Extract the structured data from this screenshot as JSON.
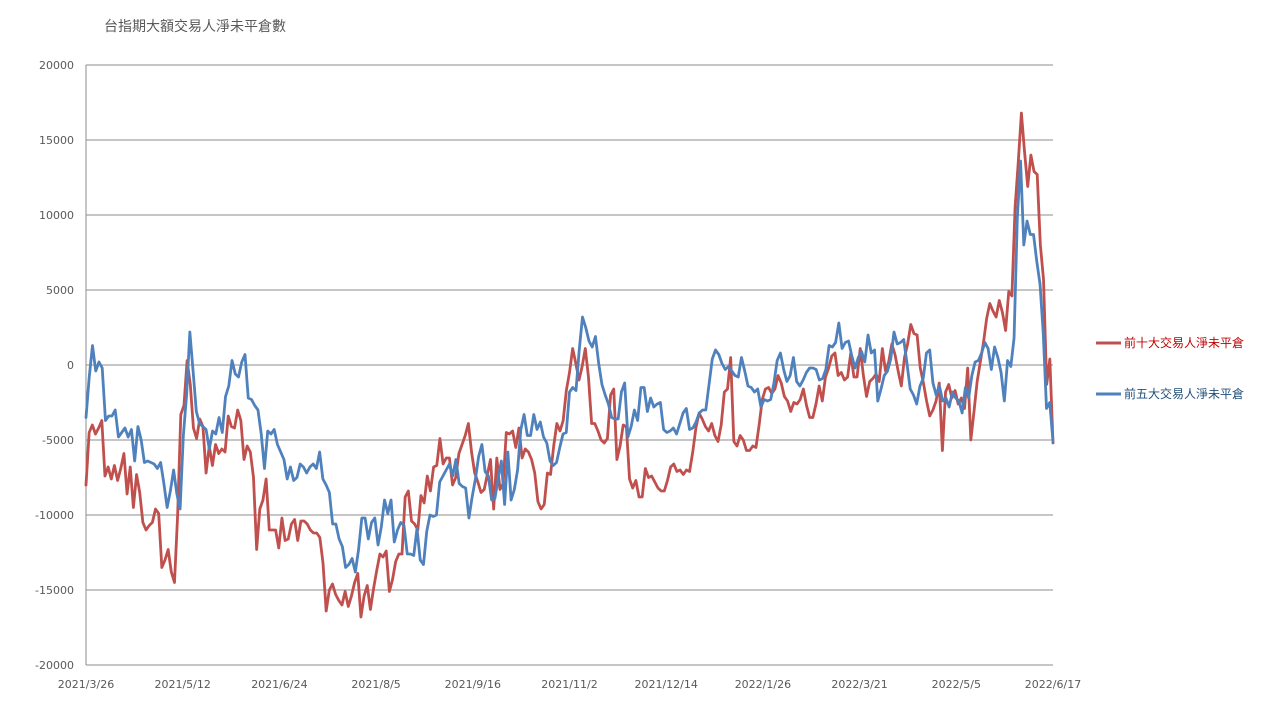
{
  "chart_data": {
    "type": "line",
    "title": "台指期大額交易人淨未平倉數",
    "xlabel": "",
    "ylabel": "",
    "ylim": [
      -20000,
      20000
    ],
    "yticks": [
      20000,
      15000,
      10000,
      5000,
      0,
      -5000,
      -10000,
      -15000,
      -20000
    ],
    "xticks": [
      "2021/3/26",
      "2021/5/12",
      "2021/6/24",
      "2021/8/5",
      "2021/9/16",
      "2021/11/2",
      "2021/12/14",
      "2022/1/26",
      "2022/3/21",
      "2022/5/5",
      "2022/6/17"
    ],
    "grid": true,
    "legend_position": "right",
    "series": [
      {
        "name": "前十大交易人淨未平倉",
        "color": "#C0504D",
        "values": [
          -8000,
          -4500,
          -4000,
          -4600,
          -4200,
          -3700,
          -7400,
          -6800,
          -7600,
          -6700,
          -7700,
          -6900,
          -5900,
          -8600,
          -6800,
          -9500,
          -7300,
          -8500,
          -10500,
          -11000,
          -10700,
          -10500,
          -9600,
          -9900,
          -13500,
          -13000,
          -12300,
          -13800,
          -14500,
          -10000,
          -3300,
          -2700,
          300,
          -1300,
          -4200,
          -4900,
          -3600,
          -4100,
          -7200,
          -5400,
          -6700,
          -5300,
          -5900,
          -5600,
          -5800,
          -3400,
          -4100,
          -4200,
          -3000,
          -3700,
          -6300,
          -5400,
          -5800,
          -7500,
          -12300,
          -9600,
          -9000,
          -7600,
          -11000,
          -11000,
          -11000,
          -12200,
          -10200,
          -11700,
          -11600,
          -10600,
          -10300,
          -11700,
          -10400,
          -10400,
          -10600,
          -11000,
          -11200,
          -11200,
          -11500,
          -13200,
          -16400,
          -15000,
          -14600,
          -15300,
          -15700,
          -16000,
          -15100,
          -16100,
          -15400,
          -14500,
          -13900,
          -16800,
          -15400,
          -14700,
          -16300,
          -14900,
          -13700,
          -12600,
          -12800,
          -12400,
          -15100,
          -14300,
          -13100,
          -12600,
          -12600,
          -8800,
          -8400,
          -10400,
          -10600,
          -11000,
          -8700,
          -9200,
          -7400,
          -8400,
          -6800,
          -6700,
          -4900,
          -6600,
          -6200,
          -6200,
          -8000,
          -7500,
          -5900,
          -5300,
          -4700,
          -3900,
          -5800,
          -7200,
          -7800,
          -8500,
          -8300,
          -7300,
          -6300,
          -9600,
          -6200,
          -8300,
          -7900,
          -4500,
          -4600,
          -4400,
          -5500,
          -4200,
          -6200,
          -5600,
          -5800,
          -6300,
          -7200,
          -9100,
          -9600,
          -9300,
          -7200,
          -7300,
          -5400,
          -3900,
          -4400,
          -3700,
          -1700,
          -500,
          1100,
          100,
          -1000,
          -100,
          1100,
          -800,
          -3900,
          -3900,
          -4400,
          -5000,
          -5200,
          -4900,
          -2000,
          -1600,
          -6300,
          -5400,
          -4000,
          -4100,
          -7600,
          -8200,
          -7700,
          -8800,
          -8800,
          -6900,
          -7500,
          -7400,
          -7800,
          -8200,
          -8400,
          -8400,
          -7700,
          -6800,
          -6600,
          -7100,
          -7000,
          -7300,
          -7000,
          -7100,
          -5800,
          -4200,
          -3200,
          -3600,
          -4100,
          -4400,
          -3900,
          -4700,
          -5100,
          -4000,
          -1800,
          -1600,
          500,
          -5100,
          -5400,
          -4700,
          -5000,
          -5700,
          -5700,
          -5400,
          -5500,
          -4000,
          -2300,
          -1600,
          -1500,
          -1900,
          -1600,
          -700,
          -1200,
          -2100,
          -2400,
          -3100,
          -2500,
          -2600,
          -2300,
          -1600,
          -2700,
          -3500,
          -3500,
          -2600,
          -1400,
          -2400,
          -800,
          -200,
          600,
          800,
          -700,
          -500,
          -1000,
          -800,
          800,
          -800,
          -800,
          1100,
          -700,
          -2100,
          -1100,
          -900,
          -600,
          -1100,
          1100,
          -400,
          200,
          1400,
          700,
          -400,
          -1400,
          500,
          1400,
          2700,
          2100,
          2000,
          -200,
          -1200,
          -2400,
          -3400,
          -3000,
          -2400,
          -1200,
          -5700,
          -1800,
          -1300,
          -2200,
          -1700,
          -2600,
          -2200,
          -2900,
          -200,
          -5000,
          -3100,
          -1100,
          200,
          1500,
          3100,
          4100,
          3600,
          3200,
          4300,
          3500,
          2300,
          4900,
          4600,
          10500,
          13500,
          16800,
          14200,
          11900,
          14000,
          12900,
          12700,
          8000,
          5700,
          -1300,
          400,
          -5200
        ]
      },
      {
        "name": "前五大交易人淨未平倉",
        "color": "#4F81BD",
        "values": [
          -3500,
          -800,
          1300,
          -400,
          200,
          -200,
          -3700,
          -3400,
          -3400,
          -3000,
          -4800,
          -4500,
          -4200,
          -4800,
          -4300,
          -6400,
          -4100,
          -5000,
          -6500,
          -6400,
          -6500,
          -6600,
          -6900,
          -6500,
          -7900,
          -9500,
          -8400,
          -7000,
          -8600,
          -9600,
          -4700,
          -2000,
          2200,
          -400,
          -3100,
          -3900,
          -4100,
          -4300,
          -5600,
          -4400,
          -4600,
          -3500,
          -4500,
          -2100,
          -1400,
          300,
          -600,
          -800,
          200,
          700,
          -2200,
          -2300,
          -2700,
          -3000,
          -4600,
          -6900,
          -4400,
          -4600,
          -4300,
          -5300,
          -5800,
          -6300,
          -7600,
          -6800,
          -7700,
          -7500,
          -6600,
          -6800,
          -7200,
          -6800,
          -6600,
          -6900,
          -5800,
          -7600,
          -8000,
          -8500,
          -10600,
          -10600,
          -11600,
          -12100,
          -13500,
          -13300,
          -12900,
          -13800,
          -12300,
          -10200,
          -10200,
          -11600,
          -10500,
          -10200,
          -12000,
          -10800,
          -9000,
          -9900,
          -9000,
          -11800,
          -11000,
          -10500,
          -10700,
          -12600,
          -12600,
          -12700,
          -10900,
          -13000,
          -13300,
          -11100,
          -10000,
          -10100,
          -10000,
          -7800,
          -7400,
          -7000,
          -6600,
          -7400,
          -6300,
          -7900,
          -8100,
          -8200,
          -10200,
          -8800,
          -7600,
          -6100,
          -5300,
          -7100,
          -7400,
          -9000,
          -8900,
          -7600,
          -6400,
          -9300,
          -5800,
          -9000,
          -8300,
          -7000,
          -4300,
          -3300,
          -4700,
          -4700,
          -3300,
          -4300,
          -3800,
          -4800,
          -5200,
          -6400,
          -6700,
          -6500,
          -5500,
          -4600,
          -4500,
          -1800,
          -1500,
          -1700,
          1000,
          3200,
          2500,
          1600,
          1200,
          1900,
          100,
          -1300,
          -2000,
          -2600,
          -3500,
          -3600,
          -3600,
          -1800,
          -1200,
          -4800,
          -4100,
          -3000,
          -3700,
          -1500,
          -1500,
          -3100,
          -2200,
          -2800,
          -2600,
          -2500,
          -4300,
          -4500,
          -4400,
          -4200,
          -4600,
          -3900,
          -3200,
          -2900,
          -4300,
          -4200,
          -3800,
          -3200,
          -3000,
          -3000,
          -1300,
          400,
          1000,
          700,
          100,
          -300,
          -100,
          -400,
          -700,
          -800,
          500,
          -400,
          -1400,
          -1500,
          -1800,
          -1600,
          -2800,
          -2300,
          -2400,
          -2300,
          -1200,
          300,
          800,
          -300,
          -1100,
          -700,
          500,
          -1100,
          -1400,
          -1000,
          -500,
          -200,
          -200,
          -300,
          -1000,
          -900,
          -300,
          1300,
          1200,
          1500,
          2800,
          1100,
          1500,
          1600,
          600,
          -200,
          500,
          900,
          200,
          2000,
          800,
          1000,
          -2400,
          -1600,
          -700,
          -400,
          400,
          2200,
          1400,
          1500,
          1700,
          100,
          -1600,
          -2000,
          -2600,
          -1400,
          -900,
          800,
          1000,
          -1200,
          -2000,
          -1400,
          -2400,
          -2200,
          -2800,
          -1800,
          -2200,
          -2400,
          -3200,
          -1500,
          -2200,
          -700,
          200,
          300,
          800,
          1500,
          1100,
          -300,
          1200,
          500,
          -500,
          -2400,
          300,
          -100,
          1800,
          9800,
          13600,
          8000,
          9600,
          8700,
          8700,
          6900,
          5400,
          2100,
          -2900,
          -2500,
          -5100
        ]
      }
    ]
  }
}
